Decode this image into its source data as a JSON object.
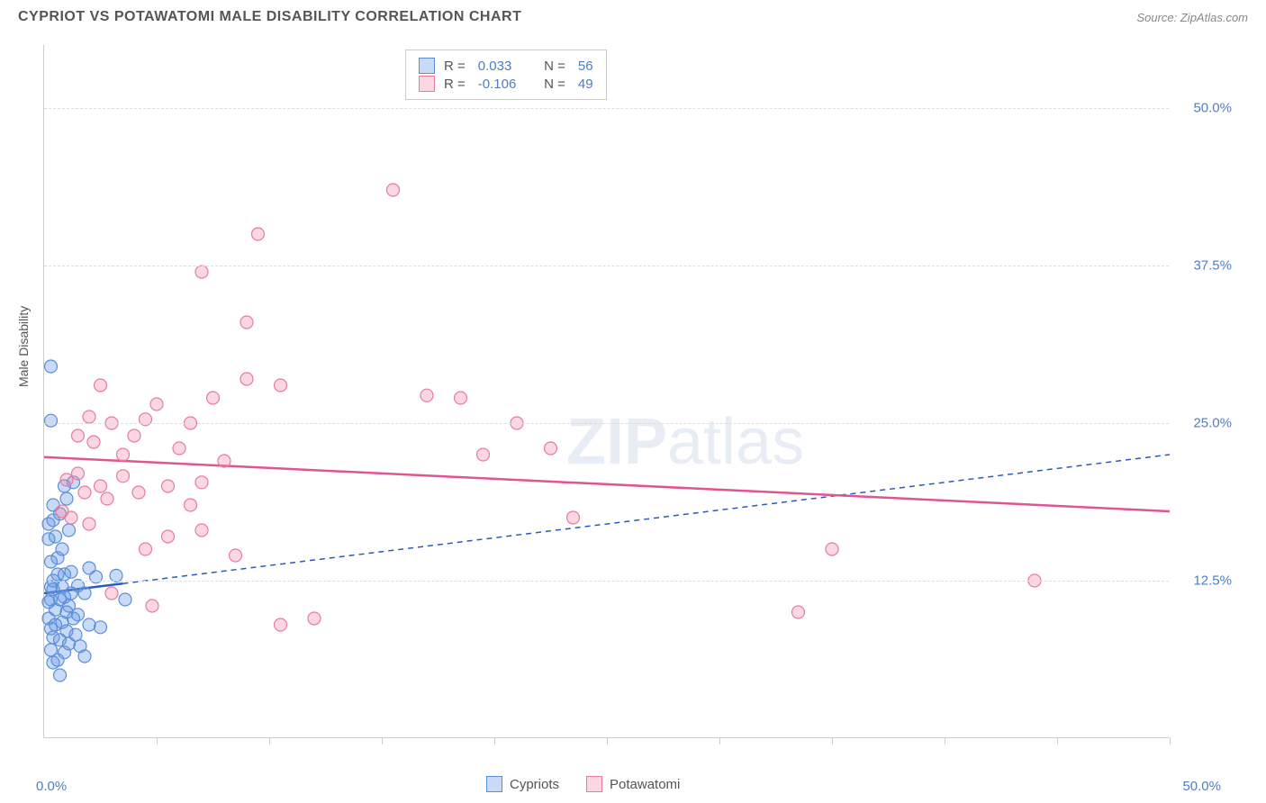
{
  "header": {
    "title": "CYPRIOT VS POTAWATOMI MALE DISABILITY CORRELATION CHART",
    "source": "Source: ZipAtlas.com"
  },
  "chart": {
    "type": "scatter",
    "y_label": "Male Disability",
    "xlim": [
      0,
      50
    ],
    "ylim": [
      0,
      55
    ],
    "x_min_label": "0.0%",
    "x_max_label": "50.0%",
    "y_ticks": [
      {
        "value": 12.5,
        "label": "12.5%"
      },
      {
        "value": 25.0,
        "label": "25.0%"
      },
      {
        "value": 37.5,
        "label": "37.5%"
      },
      {
        "value": 50.0,
        "label": "50.0%"
      }
    ],
    "x_tick_positions": [
      5,
      10,
      15,
      20,
      25,
      30,
      35,
      40,
      45,
      50
    ],
    "grid_color": "#dddddd",
    "background_color": "#ffffff",
    "marker_radius": 7,
    "marker_stroke_width": 1.2,
    "series": [
      {
        "name": "Cypriots",
        "fill_color": "rgba(100, 150, 230, 0.35)",
        "stroke_color": "#5a8fd8",
        "R": "0.033",
        "N": "56",
        "trend": {
          "y_start": 11.5,
          "y_end": 22.5,
          "color": "#2a5bb8",
          "dash": "6,5",
          "solid_until_x": 3.5
        },
        "points": [
          [
            0.3,
            29.5
          ],
          [
            0.3,
            25.2
          ],
          [
            0.2,
            17.0
          ],
          [
            0.4,
            17.3
          ],
          [
            0.2,
            15.8
          ],
          [
            0.9,
            20.0
          ],
          [
            1.3,
            20.3
          ],
          [
            1.0,
            19.0
          ],
          [
            0.4,
            18.5
          ],
          [
            0.7,
            17.8
          ],
          [
            0.3,
            14.0
          ],
          [
            0.6,
            14.3
          ],
          [
            0.9,
            13.0
          ],
          [
            1.2,
            13.2
          ],
          [
            0.4,
            12.5
          ],
          [
            0.8,
            12.0
          ],
          [
            1.5,
            12.1
          ],
          [
            2.0,
            13.5
          ],
          [
            2.3,
            12.8
          ],
          [
            3.2,
            12.9
          ],
          [
            0.3,
            11.0
          ],
          [
            0.7,
            11.0
          ],
          [
            1.1,
            10.5
          ],
          [
            1.8,
            11.5
          ],
          [
            0.2,
            9.5
          ],
          [
            0.5,
            9.0
          ],
          [
            0.8,
            9.2
          ],
          [
            1.0,
            8.5
          ],
          [
            1.4,
            8.2
          ],
          [
            2.0,
            9.0
          ],
          [
            0.4,
            8.0
          ],
          [
            0.7,
            7.8
          ],
          [
            1.1,
            7.5
          ],
          [
            1.6,
            7.3
          ],
          [
            0.3,
            7.0
          ],
          [
            0.9,
            6.8
          ],
          [
            1.3,
            9.5
          ],
          [
            2.5,
            8.8
          ],
          [
            0.6,
            6.2
          ],
          [
            0.4,
            6.0
          ],
          [
            1.8,
            6.5
          ],
          [
            0.2,
            10.8
          ],
          [
            0.5,
            10.2
          ],
          [
            1.0,
            10.0
          ],
          [
            0.3,
            8.7
          ],
          [
            3.6,
            11.0
          ],
          [
            0.7,
            5.0
          ],
          [
            0.4,
            11.8
          ],
          [
            1.2,
            11.5
          ],
          [
            0.8,
            15.0
          ],
          [
            0.5,
            16.0
          ],
          [
            1.1,
            16.5
          ],
          [
            0.6,
            13.0
          ],
          [
            0.3,
            12.0
          ],
          [
            0.9,
            11.2
          ],
          [
            1.5,
            9.8
          ]
        ]
      },
      {
        "name": "Potawatomi",
        "fill_color": "rgba(240, 140, 170, 0.35)",
        "stroke_color": "#e87ba0",
        "R": "-0.106",
        "N": "49",
        "trend": {
          "y_start": 22.3,
          "y_end": 18.0,
          "color": "#e05590",
          "dash": "",
          "solid_until_x": 50
        },
        "points": [
          [
            15.5,
            43.5
          ],
          [
            9.5,
            40.0
          ],
          [
            7.0,
            37.0
          ],
          [
            9.0,
            33.0
          ],
          [
            10.5,
            28.0
          ],
          [
            9.0,
            28.5
          ],
          [
            2.5,
            28.0
          ],
          [
            5.0,
            26.5
          ],
          [
            7.5,
            27.0
          ],
          [
            17.0,
            27.2
          ],
          [
            18.5,
            27.0
          ],
          [
            2.0,
            25.5
          ],
          [
            3.0,
            25.0
          ],
          [
            4.5,
            25.3
          ],
          [
            6.5,
            25.0
          ],
          [
            2.2,
            23.5
          ],
          [
            4.0,
            24.0
          ],
          [
            1.5,
            21.0
          ],
          [
            1.0,
            20.5
          ],
          [
            3.5,
            20.8
          ],
          [
            5.5,
            20.0
          ],
          [
            7.0,
            20.3
          ],
          [
            19.5,
            22.5
          ],
          [
            21.0,
            25.0
          ],
          [
            22.5,
            23.0
          ],
          [
            1.8,
            19.5
          ],
          [
            2.8,
            19.0
          ],
          [
            4.2,
            19.5
          ],
          [
            0.8,
            18.0
          ],
          [
            1.2,
            17.5
          ],
          [
            2.0,
            17.0
          ],
          [
            5.5,
            16.0
          ],
          [
            7.0,
            16.5
          ],
          [
            23.5,
            17.5
          ],
          [
            3.0,
            11.5
          ],
          [
            4.8,
            10.5
          ],
          [
            10.5,
            9.0
          ],
          [
            12.0,
            9.5
          ],
          [
            33.5,
            10.0
          ],
          [
            35.0,
            15.0
          ],
          [
            44.0,
            12.5
          ],
          [
            6.0,
            23.0
          ],
          [
            8.0,
            22.0
          ],
          [
            3.5,
            22.5
          ],
          [
            1.5,
            24.0
          ],
          [
            2.5,
            20.0
          ],
          [
            6.5,
            18.5
          ],
          [
            4.5,
            15.0
          ],
          [
            8.5,
            14.5
          ]
        ]
      }
    ]
  },
  "watermark": {
    "part1": "ZIP",
    "part2": "atlas"
  },
  "bottom_legend": [
    {
      "label": "Cypriots",
      "fill": "rgba(100,150,230,0.35)",
      "stroke": "#5a8fd8"
    },
    {
      "label": "Potawatomi",
      "fill": "rgba(240,140,170,0.35)",
      "stroke": "#e87ba0"
    }
  ]
}
